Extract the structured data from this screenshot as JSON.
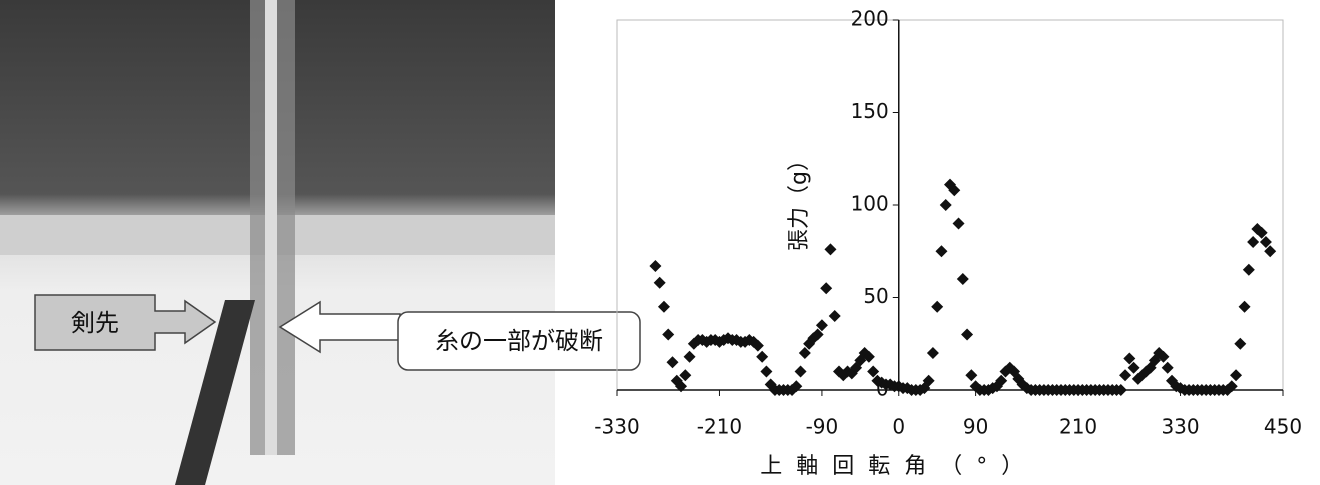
{
  "photo_labels": [
    "剣先",
    "糸の一部が破断"
  ],
  "chart_data": {
    "type": "scatter",
    "x_label": "上軸回転角（°）",
    "y_label": "張力（g）",
    "xlim": [
      -330,
      450
    ],
    "xticks": [
      -330,
      -210,
      -90,
      0,
      90,
      210,
      330,
      450
    ],
    "ylim": [
      0,
      200
    ],
    "yticks": [
      0,
      50,
      100,
      150,
      200
    ],
    "color": "#111111",
    "marker": "diamond",
    "grid": false,
    "x": [
      -285,
      -280,
      -275,
      -270,
      -265,
      -260,
      -255,
      -250,
      -245,
      -240,
      -235,
      -230,
      -225,
      -220,
      -215,
      -210,
      -205,
      -200,
      -195,
      -190,
      -185,
      -180,
      -175,
      -170,
      -165,
      -160,
      -155,
      -150,
      -145,
      -140,
      -135,
      -130,
      -125,
      -120,
      -115,
      -110,
      -105,
      -100,
      -95,
      -90,
      -85,
      -80,
      -75,
      -70,
      -65,
      -60,
      -55,
      -50,
      -45,
      -40,
      -35,
      -30,
      -25,
      -20,
      -15,
      -10,
      -5,
      0,
      5,
      10,
      15,
      20,
      25,
      30,
      35,
      40,
      45,
      50,
      55,
      60,
      65,
      70,
      75,
      80,
      85,
      90,
      95,
      100,
      105,
      110,
      115,
      120,
      125,
      130,
      135,
      140,
      145,
      150,
      155,
      160,
      165,
      170,
      175,
      180,
      185,
      190,
      195,
      200,
      205,
      210,
      215,
      220,
      225,
      230,
      235,
      240,
      245,
      250,
      255,
      260,
      265,
      270,
      275,
      280,
      285,
      290,
      295,
      300,
      305,
      310,
      315,
      320,
      325,
      330,
      335,
      340,
      345,
      350,
      355,
      360,
      365,
      370,
      375,
      380,
      385,
      390,
      395,
      400,
      405,
      410,
      415,
      420,
      425,
      430,
      435
    ],
    "values": [
      67,
      58,
      45,
      30,
      15,
      5,
      2,
      8,
      18,
      25,
      27,
      27,
      26,
      27,
      27,
      26,
      27,
      28,
      27,
      27,
      26,
      26,
      27,
      26,
      24,
      18,
      10,
      3,
      0,
      0,
      0,
      0,
      0,
      2,
      10,
      20,
      25,
      28,
      30,
      35,
      55,
      76,
      40,
      10,
      8,
      10,
      9,
      12,
      16,
      20,
      18,
      10,
      5,
      4,
      3,
      3,
      2,
      2,
      1,
      1,
      0,
      0,
      0,
      1,
      5,
      20,
      45,
      75,
      100,
      111,
      108,
      90,
      60,
      30,
      8,
      2,
      0,
      0,
      0,
      1,
      2,
      5,
      10,
      12,
      10,
      6,
      3,
      1,
      0,
      0,
      0,
      0,
      0,
      0,
      0,
      0,
      0,
      0,
      0,
      0,
      0,
      0,
      0,
      0,
      0,
      0,
      0,
      0,
      0,
      0,
      8,
      17,
      12,
      6,
      8,
      10,
      12,
      16,
      20,
      18,
      12,
      5,
      2,
      1,
      0,
      0,
      0,
      0,
      0,
      0,
      0,
      0,
      0,
      0,
      0,
      2,
      8,
      25,
      45,
      65,
      80,
      87,
      85,
      80,
      75
    ]
  }
}
